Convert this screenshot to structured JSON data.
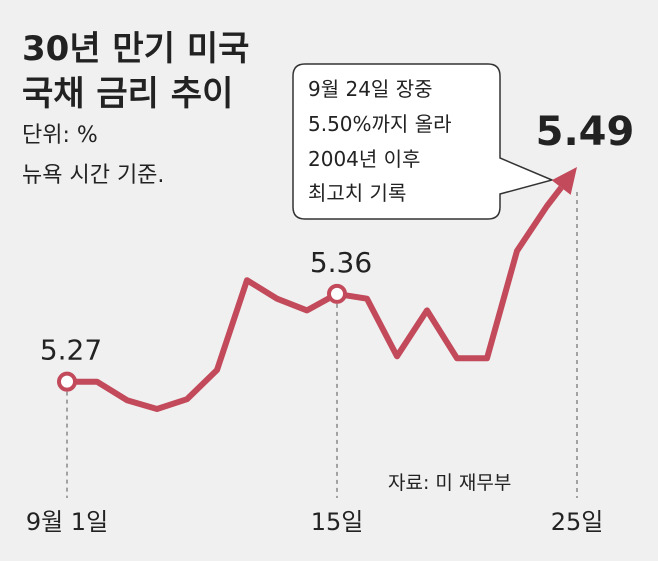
{
  "chart_data": {
    "type": "line",
    "title": [
      "30년 만기 미국",
      "국채 금리 추이"
    ],
    "subtitle": "단위: %",
    "note": "뉴욕 시간 기준.",
    "annotation": [
      "9월 24일 장중",
      "5.50%까지 올라",
      "2004년 이후",
      "최고치 기록"
    ],
    "source": "자료: 미 재무부",
    "categories": [
      "9월 1일",
      null,
      null,
      null,
      null,
      null,
      null,
      null,
      null,
      "15일",
      null,
      null,
      null,
      null,
      null,
      null,
      null,
      "25일"
    ],
    "values": [
      5.27,
      5.27,
      5.251,
      5.242,
      5.252,
      5.282,
      5.374,
      5.355,
      5.343,
      5.36,
      5.355,
      5.296,
      5.343,
      5.294,
      5.294,
      5.404,
      5.45,
      5.49
    ],
    "value_labels": [
      "5.27",
      null,
      null,
      null,
      null,
      null,
      null,
      null,
      null,
      "5.36",
      null,
      null,
      null,
      null,
      null,
      null,
      null,
      "5.49"
    ],
    "color": "#c24a5b"
  }
}
